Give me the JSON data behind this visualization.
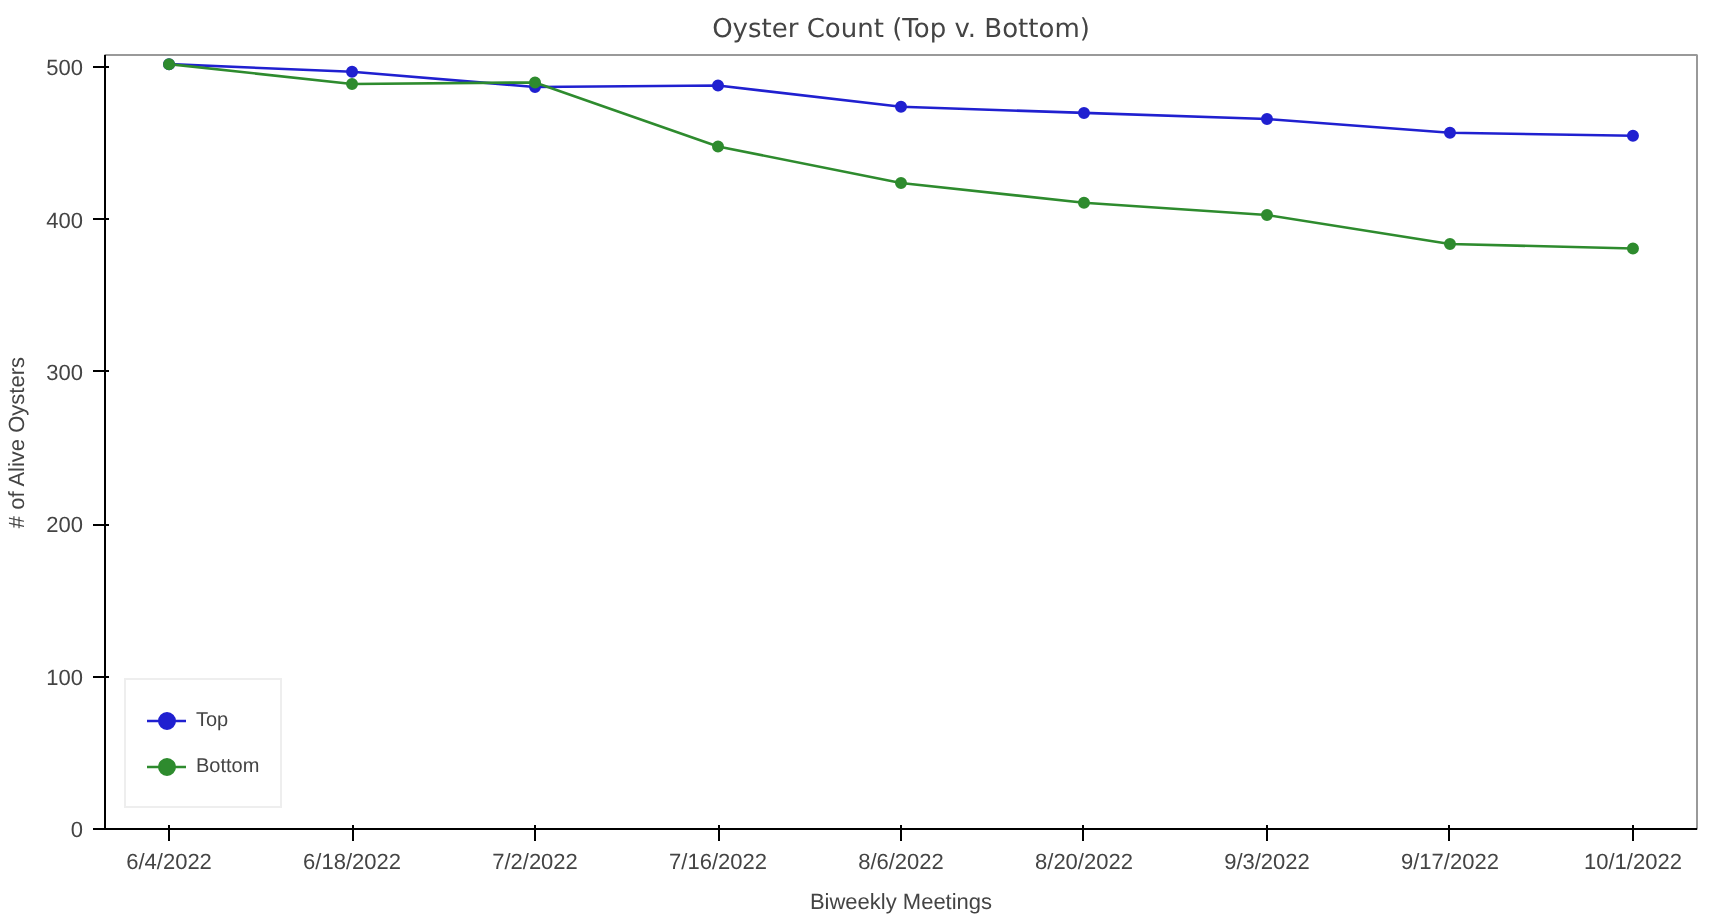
{
  "chart_data": {
    "type": "line",
    "title": "Oyster Count (Top v. Bottom)",
    "xlabel": "Biweekly Meetings",
    "ylabel": "# of Alive Oysters",
    "categories": [
      "6/4/2022",
      "6/18/2022",
      "7/2/2022",
      "7/16/2022",
      "8/6/2022",
      "8/20/2022",
      "9/3/2022",
      "9/17/2022",
      "10/1/2022"
    ],
    "series": [
      {
        "name": "Top",
        "color": "#2020d0",
        "values": [
          502,
          497,
          487,
          488,
          474,
          470,
          466,
          457,
          455
        ]
      },
      {
        "name": "Bottom",
        "color": "#2e8b2e",
        "values": [
          502,
          489,
          490,
          448,
          424,
          411,
          403,
          384,
          381
        ]
      }
    ],
    "ylim": [
      0,
      508
    ],
    "yticks": [
      0,
      100,
      200,
      300,
      400,
      500
    ],
    "grid": false,
    "legend": "bottom left",
    "marker": "circle",
    "line_style": "solid"
  }
}
